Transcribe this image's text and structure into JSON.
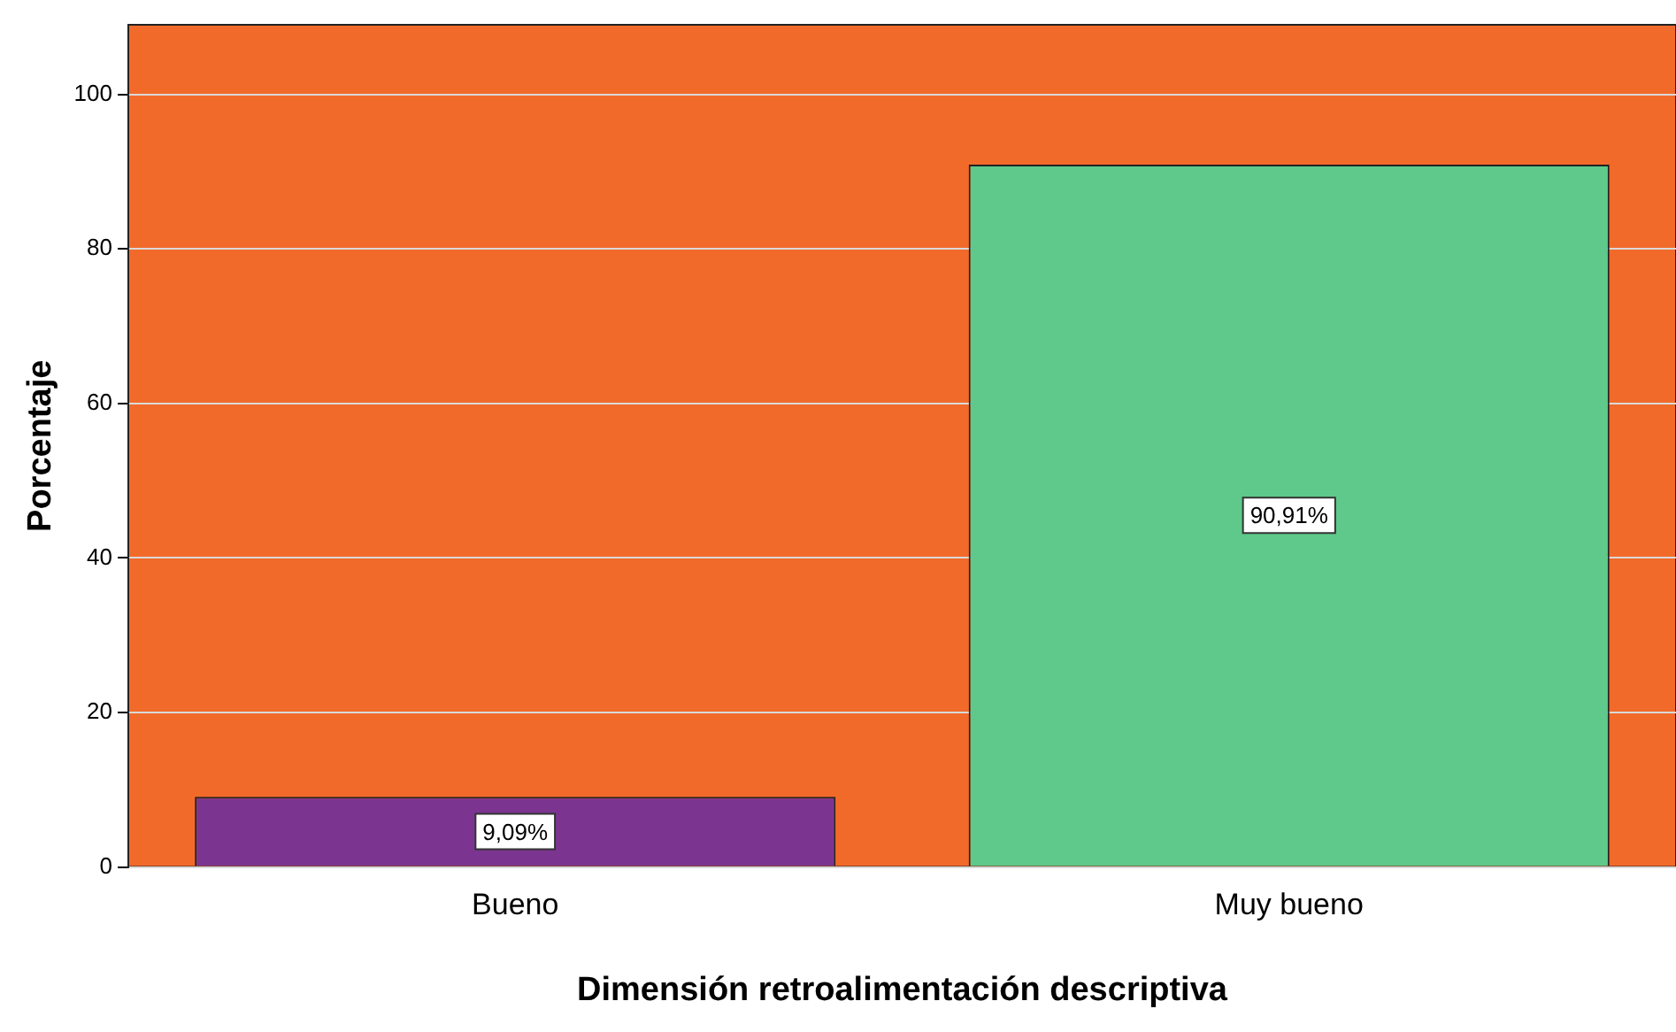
{
  "chart_data": {
    "type": "bar",
    "xlabel": "Dimensión retroalimentación descriptiva",
    "ylabel": "Porcentaje",
    "categories": [
      "Bueno",
      "Muy bueno"
    ],
    "values": [
      9.09,
      90.91
    ],
    "colors": [
      "#7b3590",
      "#5ec98a"
    ],
    "value_labels": [
      "9,09%",
      "90,91%"
    ],
    "ylim": [
      0,
      109
    ],
    "yticks": [
      0,
      20,
      40,
      60,
      80,
      100
    ],
    "grid": "y"
  }
}
